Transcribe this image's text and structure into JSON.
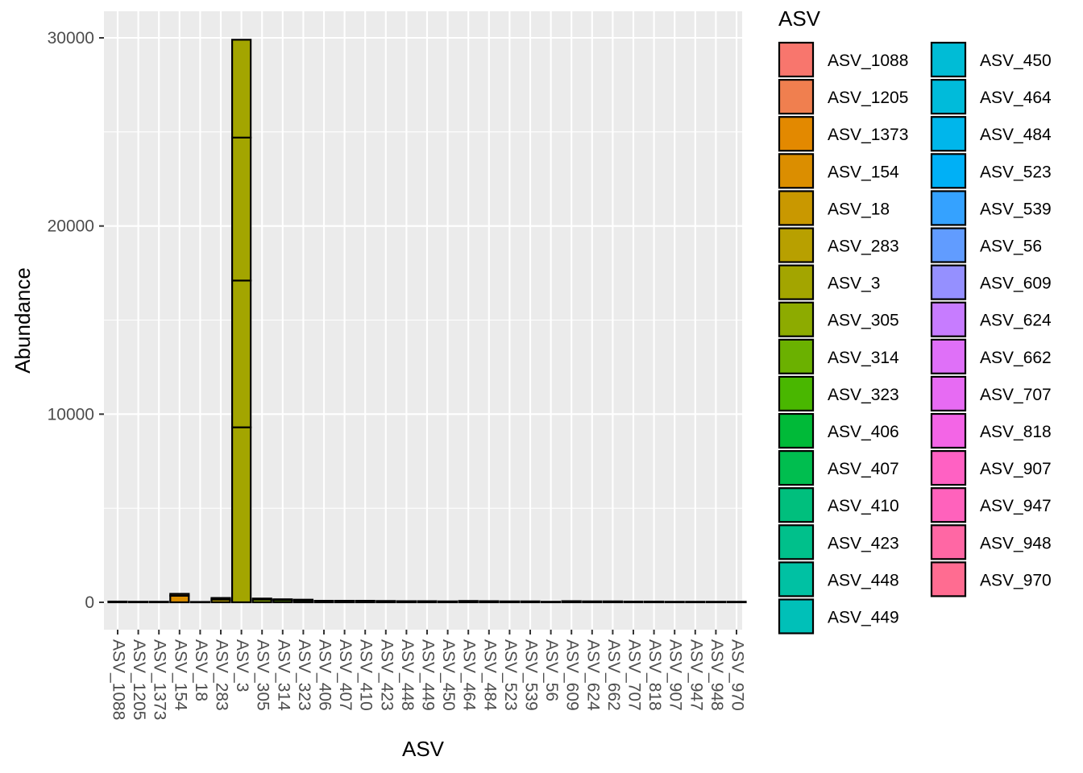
{
  "chart_data": {
    "type": "bar",
    "stacked": true,
    "title": "",
    "xlabel": "ASV",
    "ylabel": "Abundance",
    "ylim": [
      -300,
      31500
    ],
    "yticks": [
      0,
      10000,
      20000,
      30000
    ],
    "ytick_labels": [
      "0",
      "10000",
      "20000",
      "30000"
    ],
    "legend_title": "ASV",
    "legend_position": "right",
    "categories": [
      "ASV_1088",
      "ASV_1205",
      "ASV_1373",
      "ASV_154",
      "ASV_18",
      "ASV_283",
      "ASV_3",
      "ASV_305",
      "ASV_314",
      "ASV_323",
      "ASV_406",
      "ASV_407",
      "ASV_410",
      "ASV_423",
      "ASV_448",
      "ASV_449",
      "ASV_450",
      "ASV_464",
      "ASV_484",
      "ASV_523",
      "ASV_539",
      "ASV_56",
      "ASV_609",
      "ASV_624",
      "ASV_662",
      "ASV_707",
      "ASV_818",
      "ASV_907",
      "ASV_947",
      "ASV_948",
      "ASV_970"
    ],
    "colors": [
      "#F8766D",
      "#F07F4F",
      "#E38900",
      "#DB8E00",
      "#C99800",
      "#B8A000",
      "#A3A500",
      "#8DAB00",
      "#6BB100",
      "#49B700",
      "#00BA38",
      "#00BE4F",
      "#00BF7D",
      "#00C08B",
      "#00C1A3",
      "#00C0B8",
      "#00BCD6",
      "#00BBDA",
      "#00B6EB",
      "#00B0F6",
      "#35A2FF",
      "#619CFF",
      "#9590FF",
      "#C77CFF",
      "#DF70F8",
      "#E76BF3",
      "#F365E6",
      "#FF61C3",
      "#FF62BC",
      "#FF67A4",
      "#FF6C91"
    ],
    "segments": [
      [
        40
      ],
      [
        30
      ],
      [
        30
      ],
      [
        350,
        100
      ],
      [
        20
      ],
      [
        150,
        80
      ],
      [
        9300,
        7800,
        7600,
        5200
      ],
      [
        150,
        50
      ],
      [
        120,
        40
      ],
      [
        100,
        40
      ],
      [
        80
      ],
      [
        80
      ],
      [
        80
      ],
      [
        70
      ],
      [
        60
      ],
      [
        60
      ],
      [
        50
      ],
      [
        70
      ],
      [
        60
      ],
      [
        50
      ],
      [
        50
      ],
      [
        30
      ],
      [
        60
      ],
      [
        50
      ],
      [
        50
      ],
      [
        40
      ],
      [
        40
      ],
      [
        30
      ],
      [
        30
      ],
      [
        30
      ],
      [
        30
      ]
    ]
  }
}
